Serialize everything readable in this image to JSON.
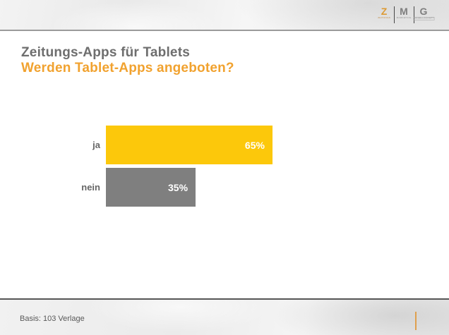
{
  "logo": {
    "letters": [
      {
        "char": "Z",
        "word": "ZEITUNGS"
      },
      {
        "char": "M",
        "word": "MARKETING"
      },
      {
        "char": "G",
        "word": "GESELLSCHAFT"
      }
    ]
  },
  "title": {
    "line1": "Zeitungs-Apps für Tablets",
    "line2": "Werden Tablet-Apps angeboten?"
  },
  "footer": {
    "basis": "Basis: 103 Verlage"
  },
  "colors": {
    "accent_orange": "#F1A22F",
    "logo_orange": "#DD9A33",
    "bar_yellow": "#FCC80B",
    "bar_gray": "#7F7F7F",
    "title_gray": "#6E6E6E",
    "label_gray": "#666666"
  },
  "chart_data": {
    "type": "bar",
    "orientation": "horizontal",
    "title": "Zeitungs-Apps für Tablets",
    "subtitle": "Werden Tablet-Apps angeboten?",
    "categories": [
      "ja",
      "nein"
    ],
    "values": [
      65,
      35
    ],
    "value_labels": [
      "65%",
      "35%"
    ],
    "bar_colors": [
      "#FCC80B",
      "#7F7F7F"
    ],
    "xlabel": "",
    "ylabel": "",
    "xlim": [
      0,
      100
    ],
    "grid": false,
    "legend": "none",
    "value_label_position": "inside-end",
    "basis_note": "Basis: 103 Verlage"
  }
}
